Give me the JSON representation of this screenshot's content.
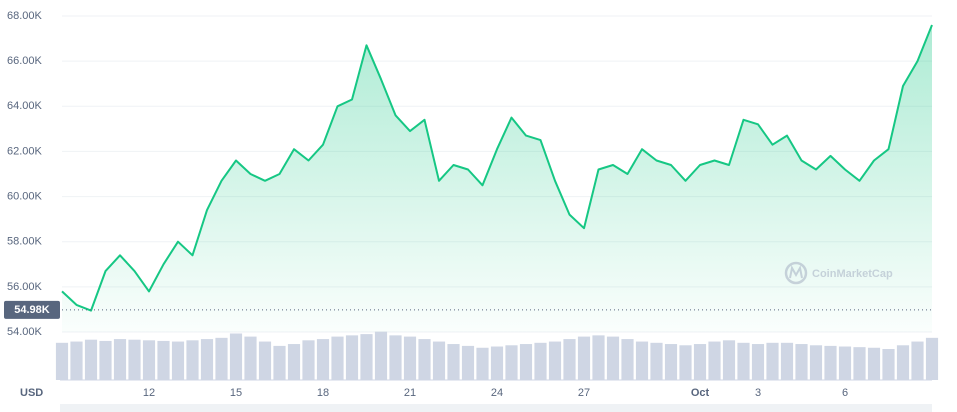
{
  "chart_data": {
    "type": "line",
    "currency_label": "USD",
    "watermark": "CoinMarketCap",
    "categories": [
      null,
      null,
      null,
      null,
      null,
      null,
      "12",
      null,
      null,
      null,
      null,
      null,
      "15",
      null,
      null,
      null,
      null,
      null,
      "18",
      null,
      null,
      null,
      null,
      null,
      "21",
      null,
      null,
      null,
      null,
      null,
      "24",
      null,
      null,
      null,
      null,
      null,
      "27",
      null,
      null,
      null,
      null,
      null,
      null,
      null,
      "Oct",
      null,
      null,
      null,
      "3",
      null,
      null,
      null,
      null,
      null,
      "6",
      null,
      null,
      null,
      null,
      null,
      null
    ],
    "series": [
      {
        "color": "#16c784",
        "values": [
          55800,
          55200,
          54950,
          56700,
          57400,
          56700,
          55800,
          57000,
          58000,
          57400,
          59400,
          60700,
          61600,
          61000,
          60700,
          61000,
          62100,
          61600,
          62300,
          64000,
          64300,
          66700,
          65200,
          63600,
          62900,
          63400,
          60700,
          61400,
          61200,
          60500,
          62100,
          63500,
          62700,
          62500,
          60700,
          59200,
          58600,
          61200,
          61400,
          61000,
          62100,
          61600,
          61400,
          60700,
          61400,
          61600,
          61400,
          63400,
          63200,
          62300,
          62700,
          61600,
          61200,
          61800,
          61200,
          60700,
          61600,
          62100,
          64900,
          66000,
          67600
        ]
      }
    ],
    "volume": {
      "color": "#cfd6e4",
      "ylim": [
        0,
        100
      ],
      "values": [
        60,
        62,
        65,
        63,
        66,
        65,
        64,
        63,
        62,
        64,
        66,
        68,
        75,
        70,
        62,
        55,
        58,
        64,
        66,
        70,
        72,
        74,
        78,
        72,
        70,
        66,
        62,
        58,
        55,
        52,
        54,
        56,
        58,
        60,
        62,
        66,
        70,
        72,
        70,
        66,
        62,
        60,
        58,
        56,
        58,
        62,
        64,
        60,
        58,
        60,
        60,
        58,
        56,
        55,
        54,
        53,
        52,
        50,
        56,
        62,
        68
      ]
    },
    "reference": {
      "value": 54980,
      "label": "54.98K"
    },
    "ylim": [
      54000,
      68000
    ],
    "yticks": [
      {
        "value": 54000,
        "label": "54.00K"
      },
      {
        "value": 56000,
        "label": "56.00K"
      },
      {
        "value": 58000,
        "label": "58.00K"
      },
      {
        "value": 60000,
        "label": "60.00K"
      },
      {
        "value": 62000,
        "label": "62.00K"
      },
      {
        "value": 64000,
        "label": "64.00K"
      },
      {
        "value": 66000,
        "label": "66.00K"
      },
      {
        "value": 68000,
        "label": "68.00K"
      }
    ],
    "grid": true
  }
}
